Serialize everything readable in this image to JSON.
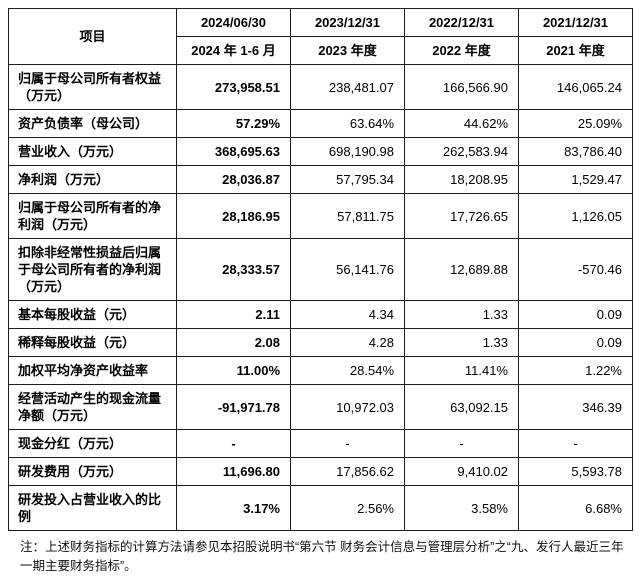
{
  "table": {
    "header": {
      "item_label": "项目",
      "columns": [
        {
          "date": "2024/06/30",
          "period": "2024 年 1-6 月"
        },
        {
          "date": "2023/12/31",
          "period": "2023 年度"
        },
        {
          "date": "2022/12/31",
          "period": "2022 年度"
        },
        {
          "date": "2021/12/31",
          "period": "2021 年度"
        }
      ]
    },
    "rows": [
      {
        "label": "归属于母公司所有者权益（万元）",
        "values": [
          "273,958.51",
          "238,481.07",
          "166,566.90",
          "146,065.24"
        ]
      },
      {
        "label": "资产负债率（母公司）",
        "values": [
          "57.29%",
          "63.64%",
          "44.62%",
          "25.09%"
        ]
      },
      {
        "label": "营业收入（万元）",
        "values": [
          "368,695.63",
          "698,190.98",
          "262,583.94",
          "83,786.40"
        ]
      },
      {
        "label": "净利润（万元）",
        "values": [
          "28,036.87",
          "57,795.34",
          "18,208.95",
          "1,529.47"
        ]
      },
      {
        "label": "归属于母公司所有者的净利润（万元）",
        "values": [
          "28,186.95",
          "57,811.75",
          "17,726.65",
          "1,126.05"
        ]
      },
      {
        "label": "扣除非经常性损益后归属于母公司所有者的净利润（万元）",
        "values": [
          "28,333.57",
          "56,141.76",
          "12,689.88",
          "-570.46"
        ]
      },
      {
        "label": "基本每股收益（元）",
        "values": [
          "2.11",
          "4.34",
          "1.33",
          "0.09"
        ]
      },
      {
        "label": "稀释每股收益（元）",
        "values": [
          "2.08",
          "4.28",
          "1.33",
          "0.09"
        ]
      },
      {
        "label": "加权平均净资产收益率",
        "values": [
          "11.00%",
          "28.54%",
          "11.41%",
          "1.22%"
        ]
      },
      {
        "label": "经营活动产生的现金流量净额（万元）",
        "values": [
          "-91,971.78",
          "10,972.03",
          "63,092.15",
          "346.39"
        ]
      },
      {
        "label": "现金分红（万元）",
        "values": [
          "-",
          "-",
          "-",
          "-"
        ]
      },
      {
        "label": "研发费用（万元）",
        "values": [
          "11,696.80",
          "17,856.62",
          "9,410.02",
          "5,593.78"
        ]
      },
      {
        "label": "研发投入占营业收入的比例",
        "values": [
          "3.17%",
          "2.56%",
          "3.58%",
          "6.68%"
        ]
      }
    ]
  },
  "note": "注：上述财务指标的计算方法请参见本招股说明书“第六节 财务会计信息与管理层分析”之“九、发行人最近三年一期主要财务指标”。"
}
